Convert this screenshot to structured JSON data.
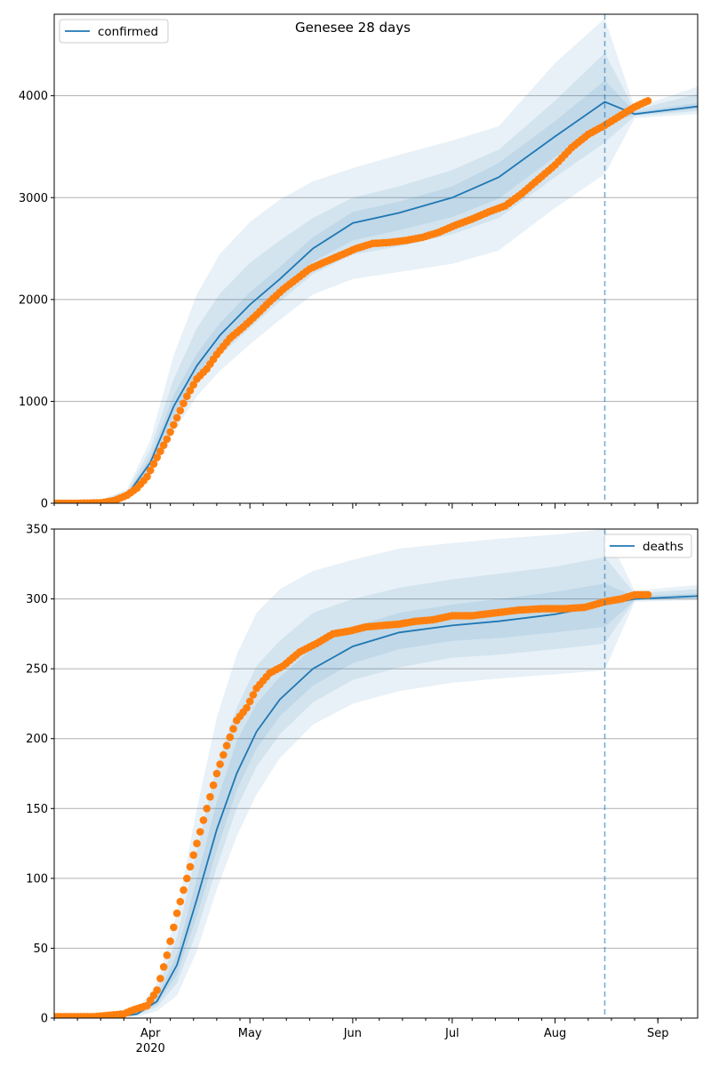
{
  "title": "Genesee 28 days",
  "x_axis": {
    "start": "2020-03-03",
    "end": "2020-09-13",
    "major_ticks": [
      {
        "date": "2020-04-01",
        "label": "Apr",
        "sublabel": "2020"
      },
      {
        "date": "2020-05-01",
        "label": "May"
      },
      {
        "date": "2020-06-01",
        "label": "Jun"
      },
      {
        "date": "2020-07-01",
        "label": "Jul"
      },
      {
        "date": "2020-08-01",
        "label": "Aug"
      },
      {
        "date": "2020-09-01",
        "label": "Sep"
      }
    ],
    "minor_tick_interval_days": 7
  },
  "forecast_start": "2020-08-16",
  "colors": {
    "model": "#1f77b4",
    "observed": "#ff7f0e",
    "band": "#1f77b4",
    "grid": "#b0b0b0"
  },
  "chart_data": [
    {
      "type": "line",
      "panel": "top",
      "legend": "confirmed",
      "legend_loc": "upper-left",
      "ylim": [
        0,
        4800
      ],
      "yticks": [
        0,
        1000,
        2000,
        3000,
        4000
      ],
      "grid": "horizontal",
      "model": {
        "x": [
          "2020-03-03",
          "2020-03-15",
          "2020-03-25",
          "2020-04-01",
          "2020-04-08",
          "2020-04-15",
          "2020-04-22",
          "2020-05-01",
          "2020-05-10",
          "2020-05-20",
          "2020-06-01",
          "2020-06-15",
          "2020-07-01",
          "2020-07-15",
          "2020-08-01",
          "2020-08-16",
          "2020-08-25",
          "2020-09-13"
        ],
        "y": [
          0,
          5,
          80,
          400,
          950,
          1350,
          1650,
          1950,
          2200,
          2500,
          2750,
          2850,
          3000,
          3200,
          3600,
          3940,
          3820,
          3895
        ],
        "bands": [
          {
            "lo": [
              0,
              3,
              40,
              250,
              700,
              1050,
              1300,
              1560,
              1800,
              2050,
              2200,
              2270,
              2350,
              2480,
              2900,
              3230,
              3780,
              3820
            ],
            "hi": [
              0,
              8,
              140,
              620,
              1450,
              2050,
              2450,
              2760,
              2980,
              3160,
              3290,
              3420,
              3560,
              3700,
              4320,
              4760,
              3880,
              4090
            ]
          },
          {
            "lo": [
              0,
              4,
              55,
              300,
              800,
              1180,
              1450,
              1720,
              1980,
              2250,
              2440,
              2520,
              2640,
              2800,
              3200,
              3540,
              3800,
              3850
            ],
            "hi": [
              0,
              7,
              115,
              530,
              1220,
              1720,
              2060,
              2360,
              2580,
              2800,
              3000,
              3110,
              3270,
              3470,
              3950,
              4420,
              3860,
              4020
            ]
          },
          {
            "lo": [
              0,
              4,
              65,
              340,
              860,
              1260,
              1540,
              1830,
              2080,
              2370,
              2580,
              2680,
              2810,
              2990,
              3400,
              3740,
              3810,
              3870
            ],
            "hi": [
              0,
              6,
              95,
              460,
              1060,
              1470,
              1770,
              2070,
              2320,
              2610,
              2860,
              2960,
              3110,
              3340,
              3750,
              4150,
              3840,
              3930
            ]
          }
        ]
      },
      "observed": {
        "x": [
          "2020-03-03",
          "2020-03-10",
          "2020-03-17",
          "2020-03-21",
          "2020-03-25",
          "2020-03-28",
          "2020-03-31",
          "2020-04-03",
          "2020-04-06",
          "2020-04-09",
          "2020-04-12",
          "2020-04-15",
          "2020-04-18",
          "2020-04-21",
          "2020-04-25",
          "2020-04-29",
          "2020-05-03",
          "2020-05-07",
          "2020-05-11",
          "2020-05-15",
          "2020-05-19",
          "2020-05-23",
          "2020-05-28",
          "2020-06-02",
          "2020-06-07",
          "2020-06-12",
          "2020-06-17",
          "2020-06-22",
          "2020-06-27",
          "2020-07-02",
          "2020-07-07",
          "2020-07-12",
          "2020-07-17",
          "2020-07-22",
          "2020-07-27",
          "2020-08-01",
          "2020-08-06",
          "2020-08-11",
          "2020-08-16",
          "2020-08-21",
          "2020-08-25",
          "2020-08-29"
        ],
        "y": [
          0,
          0,
          5,
          25,
          80,
          150,
          260,
          450,
          630,
          840,
          1050,
          1220,
          1320,
          1460,
          1620,
          1730,
          1850,
          1980,
          2100,
          2200,
          2300,
          2360,
          2430,
          2500,
          2550,
          2560,
          2580,
          2610,
          2660,
          2730,
          2790,
          2860,
          2920,
          3040,
          3180,
          3320,
          3490,
          3620,
          3710,
          3810,
          3890,
          3950
        ]
      }
    },
    {
      "type": "line",
      "panel": "bottom",
      "legend": "deaths",
      "legend_loc": "upper-right",
      "ylim": [
        0,
        350
      ],
      "yticks": [
        0,
        50,
        100,
        150,
        200,
        250,
        300,
        350
      ],
      "grid": "horizontal",
      "model": {
        "x": [
          "2020-03-03",
          "2020-03-20",
          "2020-03-28",
          "2020-04-03",
          "2020-04-09",
          "2020-04-15",
          "2020-04-21",
          "2020-04-27",
          "2020-05-03",
          "2020-05-10",
          "2020-05-20",
          "2020-06-01",
          "2020-06-15",
          "2020-07-01",
          "2020-07-15",
          "2020-08-01",
          "2020-08-16",
          "2020-08-25",
          "2020-09-13"
        ],
        "y": [
          0,
          0,
          3,
          12,
          38,
          85,
          135,
          175,
          205,
          228,
          250,
          266,
          276,
          281,
          284,
          289,
          296,
          300,
          302
        ],
        "bands": [
          {
            "lo": [
              0,
              0,
              1,
              5,
              16,
              48,
              92,
              130,
              160,
              186,
              210,
              225,
              234,
              240,
              243,
              246,
              249,
              298,
              299
            ],
            "hi": [
              0,
              1,
              6,
              25,
              75,
              150,
              215,
              260,
              290,
              307,
              320,
              328,
              336,
              340,
              343,
              346,
              350,
              306,
              310
            ]
          },
          {
            "lo": [
              0,
              0,
              2,
              8,
              25,
              62,
              108,
              150,
              180,
              203,
              226,
              242,
              251,
              258,
              260,
              264,
              268,
              299,
              300
            ],
            "hi": [
              0,
              1,
              5,
              19,
              58,
              120,
              180,
              222,
              252,
              270,
              290,
              300,
              308,
              314,
              318,
              323,
              330,
              304,
              307
            ]
          },
          {
            "lo": [
              0,
              0,
              2,
              10,
              31,
              73,
              120,
              163,
              193,
              216,
              238,
              254,
              264,
              270,
              272,
              276,
              280,
              299,
              301
            ],
            "hi": [
              0,
              0,
              4,
              15,
              46,
              100,
              155,
              198,
              225,
              244,
              265,
              280,
              290,
              296,
              300,
              305,
              311,
              302,
              304
            ]
          }
        ]
      },
      "observed": {
        "x": [
          "2020-03-03",
          "2020-03-15",
          "2020-03-24",
          "2020-03-27",
          "2020-03-31",
          "2020-04-03",
          "2020-04-06",
          "2020-04-09",
          "2020-04-12",
          "2020-04-15",
          "2020-04-18",
          "2020-04-21",
          "2020-04-24",
          "2020-04-27",
          "2020-04-30",
          "2020-05-03",
          "2020-05-07",
          "2020-05-11",
          "2020-05-16",
          "2020-05-21",
          "2020-05-26",
          "2020-05-31",
          "2020-06-05",
          "2020-06-10",
          "2020-06-15",
          "2020-06-20",
          "2020-06-25",
          "2020-07-01",
          "2020-07-07",
          "2020-07-14",
          "2020-07-21",
          "2020-07-28",
          "2020-08-04",
          "2020-08-10",
          "2020-08-16",
          "2020-08-21",
          "2020-08-25",
          "2020-08-29"
        ],
        "y": [
          1,
          1,
          3,
          6,
          9,
          20,
          45,
          75,
          100,
          125,
          150,
          175,
          195,
          213,
          222,
          236,
          247,
          252,
          262,
          268,
          275,
          277,
          280,
          281,
          282,
          284,
          285,
          288,
          288,
          290,
          292,
          293,
          293,
          294,
          298,
          300,
          303,
          303
        ]
      }
    }
  ]
}
